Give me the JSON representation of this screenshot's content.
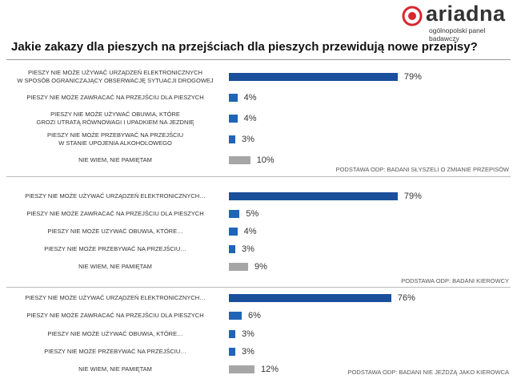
{
  "header": {
    "brand": "ariadna",
    "tagline": "ogólnopolski panel badawczy"
  },
  "title": "Jakie zakazy dla pieszych na przejściach dla pieszych przewidują nowe przepisy?",
  "chart_data": [
    {
      "type": "bar",
      "orientation": "horizontal",
      "categories": [
        "PIESZY NIE MOŻE UŻYWAĆ URZĄDZEŃ ELEKTRONICZNYCH\nW SPOSÓB OGRANICZAJĄCY OBSERWACJĘ SYTUACJI DROGOWEJ",
        "PIESZY NIE MOŻE ZAWRACAĆ NA PRZEJŚCIU DLA PIESZYCH",
        "PIESZY NIE MOŻE UŻYWAĆ OBUWIA, KTÓRE\nGROZI UTRATĄ RÓWNOWAGI I UPADKIEM NA JEZDNIĘ",
        "PIESZY NIE MOŻE PRZEBYWAĆ NA PRZEJŚCIU\nW STANIE UPOJENIA ALKOHOLOWEGO",
        "NIE WIEM, NIE PAMIĘTAM"
      ],
      "values": [
        79,
        4,
        4,
        3,
        10
      ],
      "value_labels": [
        "79%",
        "4%",
        "4%",
        "3%",
        "10%"
      ],
      "colors": [
        "#1a4f9c",
        "#1f64b8",
        "#1f64b8",
        "#1f64b8",
        "#a6a6a6"
      ],
      "note": "PODSTAWA ODP: BADANI SŁYSZELI O ZMIANIE PRZEPISÓW"
    },
    {
      "type": "bar",
      "orientation": "horizontal",
      "categories": [
        "PIESZY NIE MOŻE UŻYWAĆ URZĄDZEŃ ELEKTRONICZNYCH…",
        "PIESZY NIE MOŻE ZAWRACAĆ NA PRZEJŚCIU DLA PIESZYCH",
        "PIESZY NIE MOŻE UŻYWAĆ OBUWIA, KTÓRE…",
        "PIESZY NIE MOŻE PRZEBYWAĆ NA PRZEJŚCIU…",
        "NIE WIEM, NIE PAMIĘTAM"
      ],
      "values": [
        79,
        5,
        4,
        3,
        9
      ],
      "value_labels": [
        "79%",
        "5%",
        "4%",
        "3%",
        "9%"
      ],
      "colors": [
        "#1a4f9c",
        "#1f64b8",
        "#1f64b8",
        "#1f64b8",
        "#a6a6a6"
      ],
      "note": "PODSTAWA ODP: BADANI KIEROWCY"
    },
    {
      "type": "bar",
      "orientation": "horizontal",
      "categories": [
        "PIESZY NIE MOŻE UŻYWAĆ URZĄDZEŃ ELEKTRONICZNYCH…",
        "PIESZY NIE MOŻE ZAWRACAĆ NA PRZEJŚCIU DLA PIESZYCH",
        "PIESZY NIE MOŻE UŻYWAĆ OBUWIA, KTÓRE…",
        "PIESZY NIE MOŻE PRZEBYWAĆ NA PRZEJŚCIU…",
        "NIE WIEM, NIE PAMIĘTAM"
      ],
      "values": [
        76,
        6,
        3,
        3,
        12
      ],
      "value_labels": [
        "76%",
        "6%",
        "3%",
        "3%",
        "12%"
      ],
      "colors": [
        "#1a4f9c",
        "#1f64b8",
        "#1f64b8",
        "#1f64b8",
        "#a6a6a6"
      ],
      "note": "PODSTAWA ODP: BADANI NIE JEŻDŻĄ JAKO KIEROWCA"
    }
  ]
}
